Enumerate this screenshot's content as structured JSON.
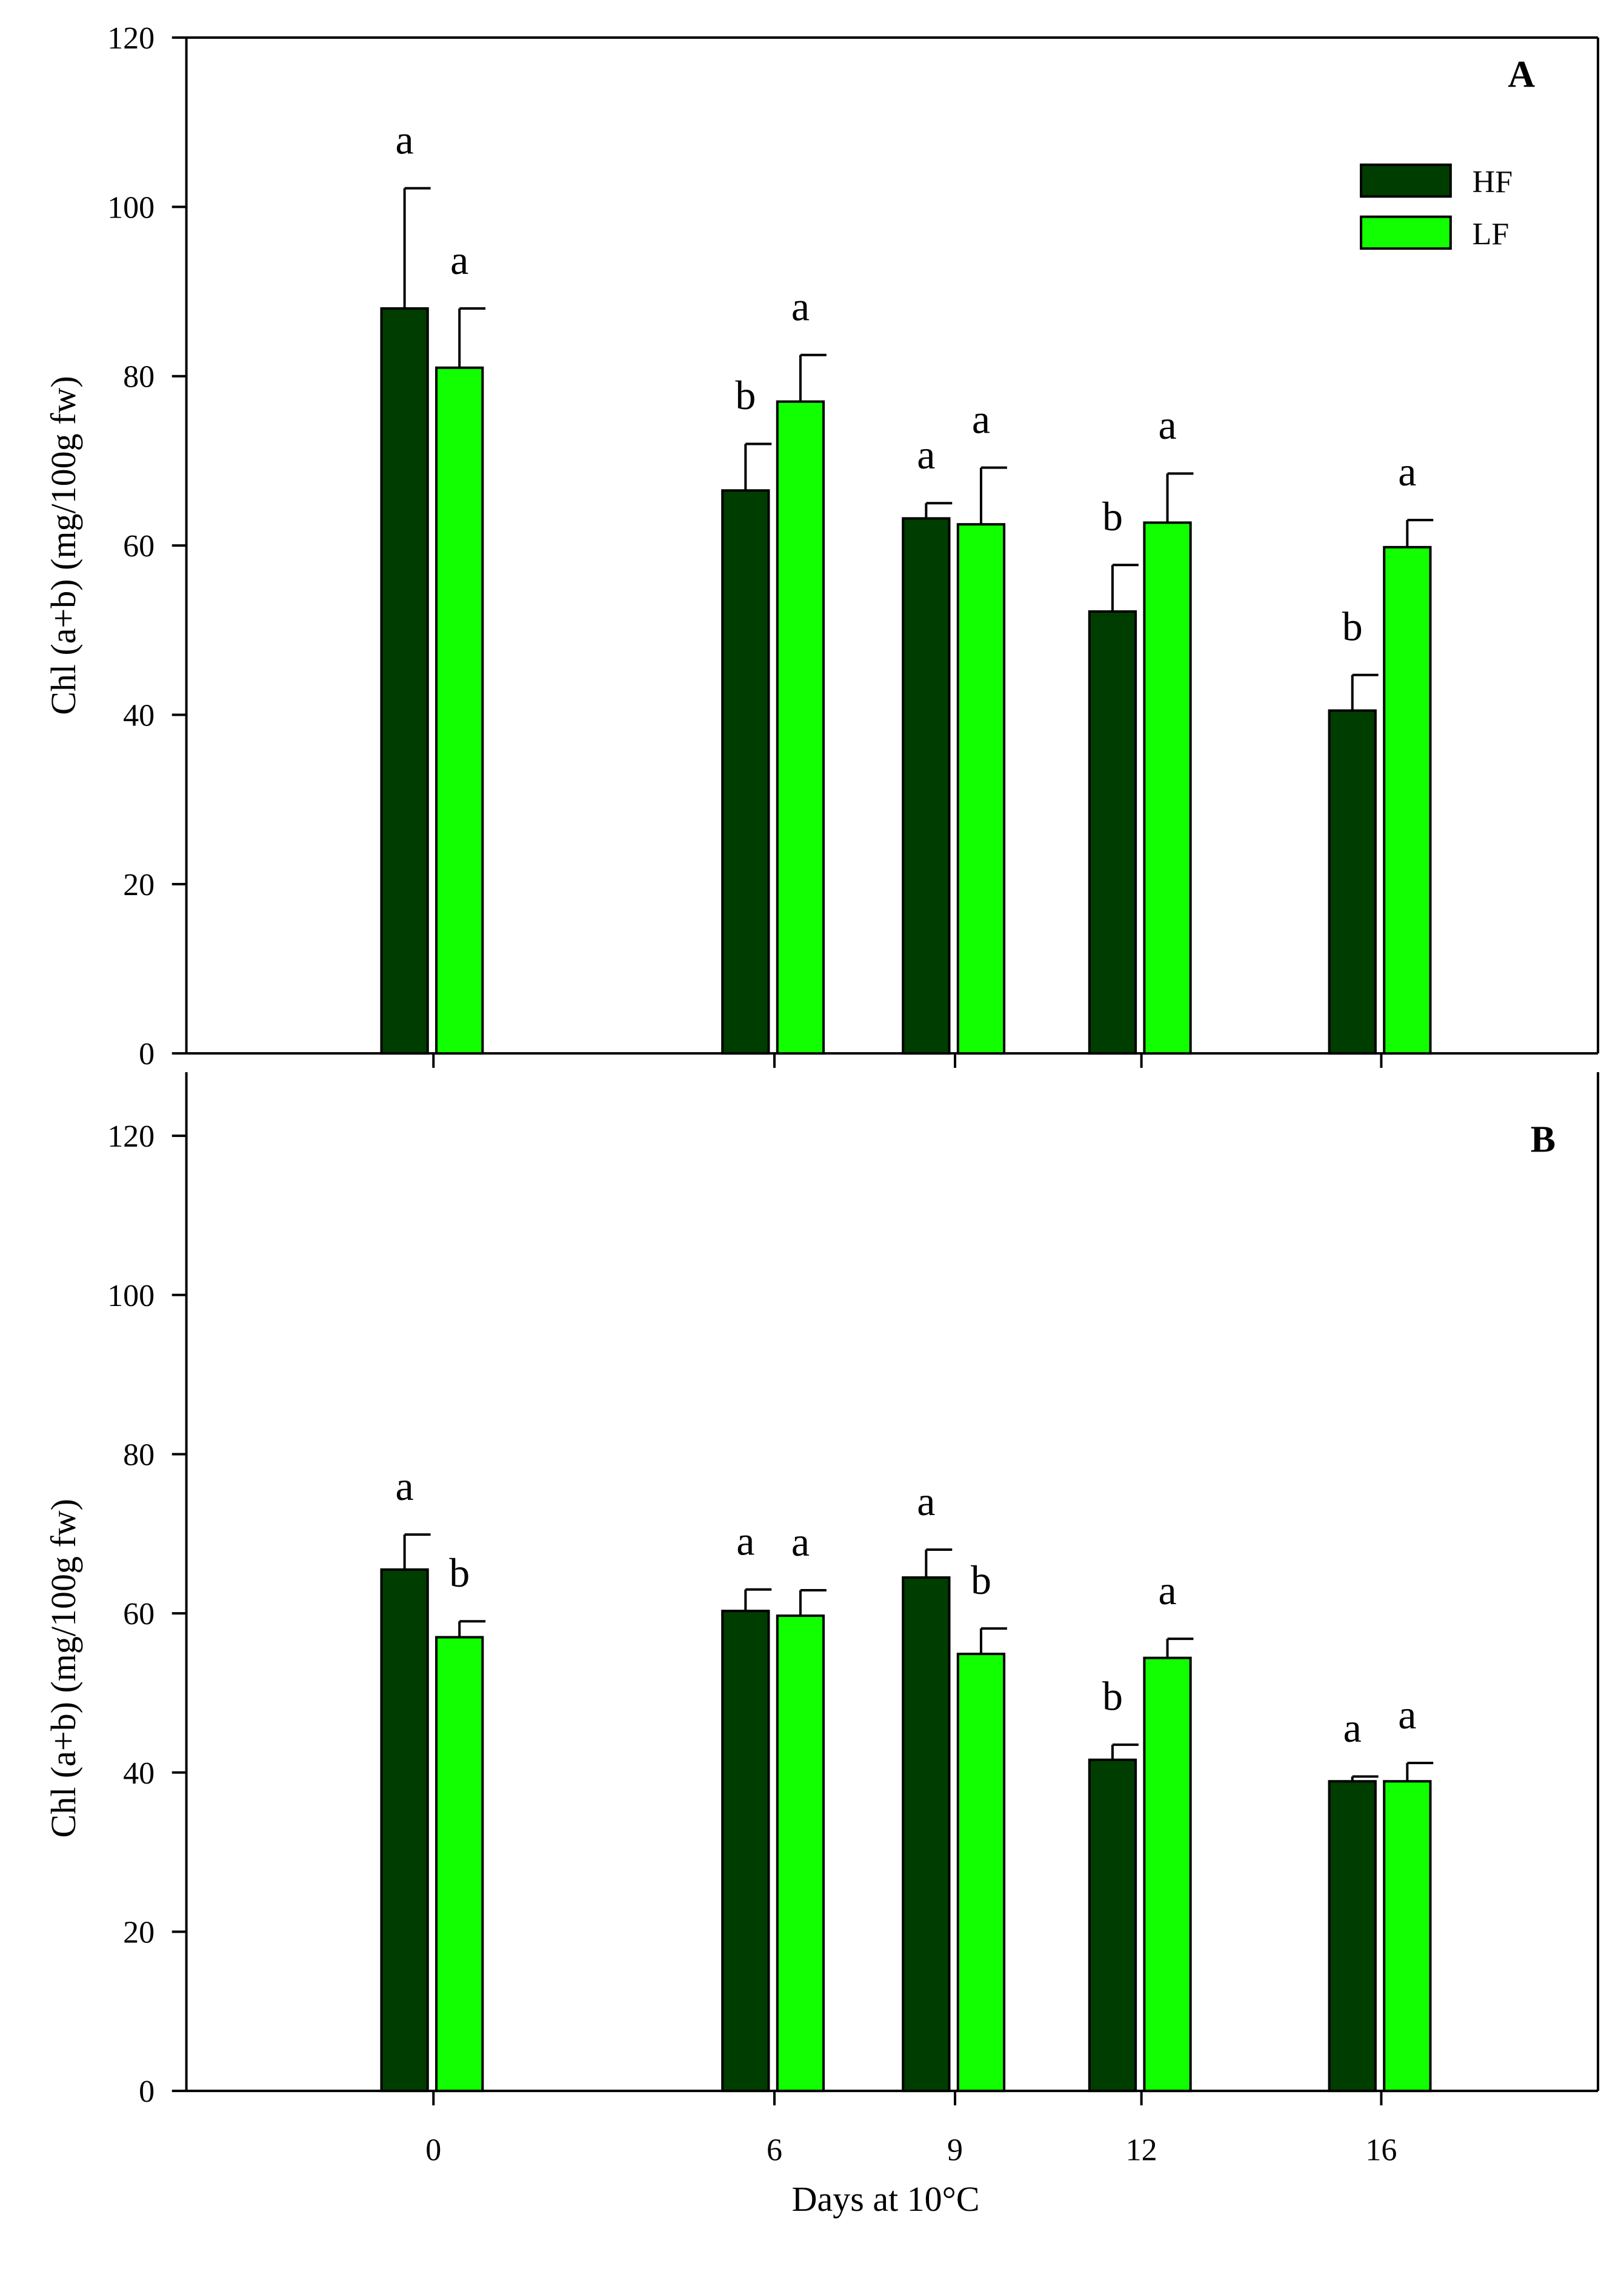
{
  "chart_data": [
    {
      "type": "bar",
      "panel_label": "A",
      "ylabel": "Chl (a+b) (mg/100g fw)",
      "xlabel": "",
      "ylim": [
        0,
        120
      ],
      "yticks": [
        "0",
        "20",
        "40",
        "60",
        "80",
        "100",
        "120"
      ],
      "categories": [
        "0",
        "6",
        "9",
        "12",
        "16"
      ],
      "show_x_tick_labels": false,
      "legend": {
        "position": "top-right",
        "entries": [
          "HF",
          "LF"
        ]
      },
      "series": [
        {
          "name": "HF",
          "color": "#003d00",
          "values": [
            88,
            66.5,
            63.2,
            52.2,
            40.5
          ],
          "errors": [
            14.2,
            5.5,
            1.8,
            5.5,
            4.2
          ],
          "letters": [
            "a",
            "b",
            "a",
            "b",
            "b"
          ]
        },
        {
          "name": "LF",
          "color": "#11ff00",
          "values": [
            81,
            77,
            62.5,
            62.7,
            59.8
          ],
          "errors": [
            7,
            5.5,
            6.7,
            5.8,
            3.2
          ],
          "letters": [
            "a",
            "a",
            "a",
            "a",
            "a"
          ]
        }
      ]
    },
    {
      "type": "bar",
      "panel_label": "B",
      "ylabel": "Chl (a+b) (mg/100g fw)",
      "xlabel": "Days at 10°C",
      "ylim": [
        0,
        130
      ],
      "yticks": [
        "0",
        "20",
        "40",
        "60",
        "80",
        "100",
        "120"
      ],
      "categories": [
        "0",
        "6",
        "9",
        "12",
        "16"
      ],
      "show_x_tick_labels": true,
      "series": [
        {
          "name": "HF",
          "color": "#003d00",
          "values": [
            65.5,
            60.3,
            64.5,
            41.6,
            38.9
          ],
          "errors": [
            4.4,
            2.7,
            3.5,
            1.9,
            0.6
          ],
          "letters": [
            "a",
            "a",
            "a",
            "b",
            "a"
          ]
        },
        {
          "name": "LF",
          "color": "#11ff00",
          "values": [
            57,
            59.7,
            54.9,
            54.4,
            38.9
          ],
          "errors": [
            2,
            3.2,
            3.2,
            2.4,
            2.3
          ],
          "letters": [
            "b",
            "a",
            "b",
            "a",
            "a"
          ]
        }
      ]
    }
  ]
}
